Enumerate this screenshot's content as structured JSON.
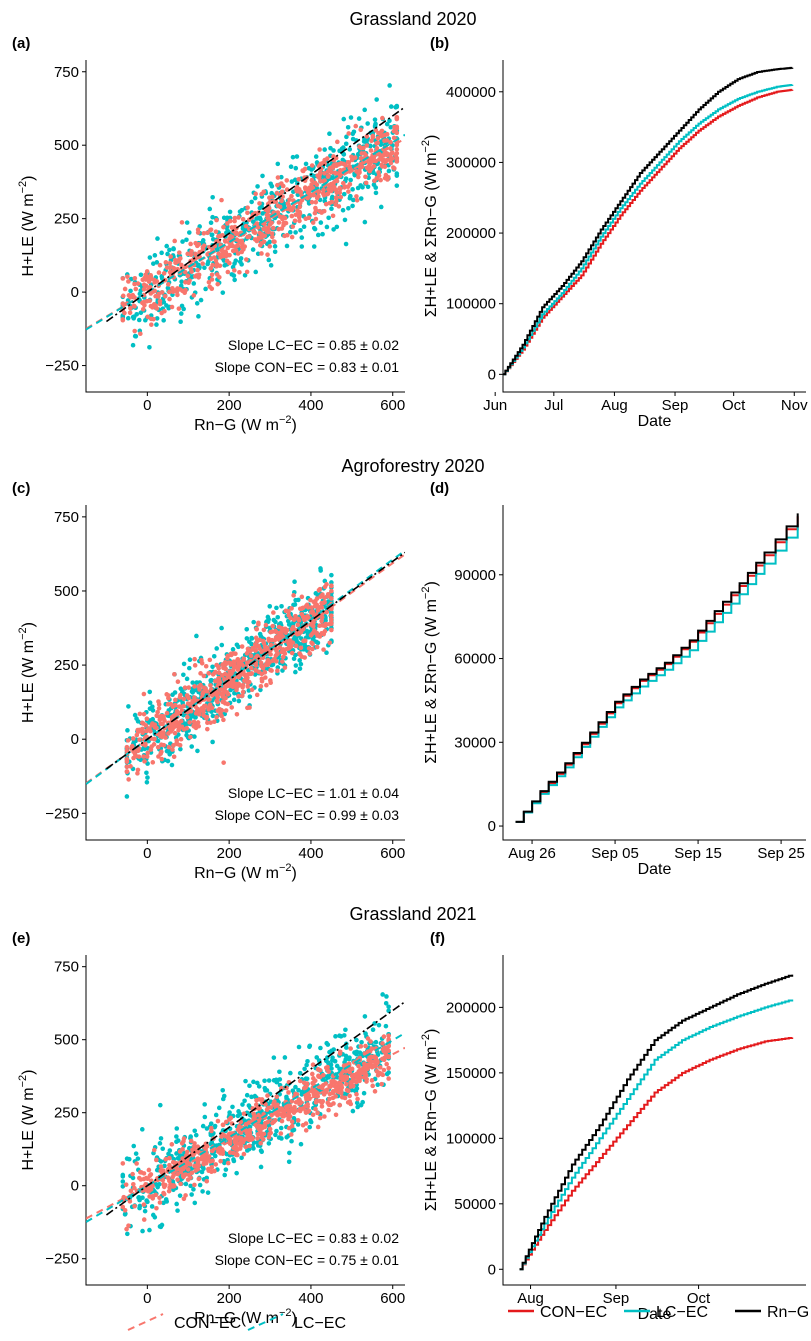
{
  "colors": {
    "con_ec": "#F8766D",
    "lc_ec": "#00BFC4",
    "rn_g": "#000000",
    "con_ec_line": "#E41A1C"
  },
  "rows": [
    {
      "title": "Grassland 2020"
    },
    {
      "title": "Agroforestry 2020"
    },
    {
      "title": "Grassland 2021"
    }
  ],
  "scatter_common": {
    "xlabel_main": "Rn−G (W m",
    "xlabel_sup": "−2",
    "xlabel_end": ")",
    "ylabel_main": "H+LE (W m",
    "ylabel_sup": "−2",
    "ylabel_end": ")"
  },
  "cum_common": {
    "xlabel": "Date",
    "ylabel_main": "ΣH+LE & ΣRn−G (W m",
    "ylabel_sup": "−2",
    "ylabel_end": ")"
  },
  "legends": {
    "scatter": [
      {
        "label": "CON−EC",
        "series": "CON-EC"
      },
      {
        "label": "LC−EC",
        "series": "LC-EC"
      }
    ],
    "cumulative": [
      {
        "label": "CON−EC",
        "series": "CON-EC"
      },
      {
        "label": "LC−EC",
        "series": "LC-EC"
      },
      {
        "label": "Rn−G",
        "series": "Rn-G"
      }
    ]
  },
  "chart_data": [
    {
      "panel": "(a)",
      "type": "scatter",
      "xlim": [
        -150,
        630
      ],
      "ylim": [
        -340,
        790
      ],
      "xticks": [
        0,
        200,
        400,
        600
      ],
      "yticks": [
        -250,
        0,
        250,
        500,
        750
      ],
      "xtick_labels": [
        "0",
        "200",
        "400",
        "600"
      ],
      "ytick_labels": [
        "−250",
        "0",
        "250",
        "500",
        "750"
      ],
      "cloud": {
        "x_range": [
          -60,
          610
        ],
        "spread_con": 50,
        "spread_lc": 75
      },
      "series": [
        {
          "name": "CON-EC",
          "slope": 0.83,
          "intercept": 0
        },
        {
          "name": "LC-EC",
          "slope": 0.85,
          "intercept": 0
        }
      ],
      "reference_line": {
        "slope": 1,
        "intercept": 0
      },
      "annotations": [
        "Slope LC−EC = 0.85 ± 0.02",
        "Slope CON−EC = 0.83 ± 0.01"
      ]
    },
    {
      "panel": "(b)",
      "type": "line",
      "xlim": [
        0,
        155
      ],
      "ylim": [
        -25000,
        445000
      ],
      "xticks": [
        -4,
        26,
        57,
        88,
        118,
        149
      ],
      "xtick_labels": [
        "Jun",
        "Jul",
        "Aug",
        "Sep",
        "Oct",
        "Nov"
      ],
      "yticks": [
        0,
        100000,
        200000,
        300000,
        400000
      ],
      "ytick_labels": [
        "0",
        "100000",
        "200000",
        "300000",
        "400000"
      ],
      "x": [
        0,
        10,
        20,
        30,
        40,
        50,
        60,
        70,
        80,
        90,
        100,
        110,
        120,
        130,
        140,
        148
      ],
      "series": [
        {
          "name": "CON-EC",
          "values": [
            0,
            35000,
            80000,
            110000,
            140000,
            185000,
            225000,
            260000,
            290000,
            320000,
            345000,
            365000,
            380000,
            392000,
            400000,
            403000
          ]
        },
        {
          "name": "LC-EC",
          "values": [
            0,
            38000,
            85000,
            115000,
            150000,
            195000,
            235000,
            270000,
            300000,
            330000,
            355000,
            375000,
            390000,
            400000,
            407000,
            410000
          ]
        },
        {
          "name": "Rn-G",
          "values": [
            0,
            42000,
            95000,
            125000,
            160000,
            205000,
            245000,
            285000,
            315000,
            345000,
            375000,
            400000,
            418000,
            428000,
            432000,
            434000
          ]
        }
      ]
    },
    {
      "panel": "(c)",
      "type": "scatter",
      "xlim": [
        -150,
        630
      ],
      "ylim": [
        -340,
        790
      ],
      "xticks": [
        0,
        200,
        400,
        600
      ],
      "yticks": [
        -250,
        0,
        250,
        500,
        750
      ],
      "xtick_labels": [
        "0",
        "200",
        "400",
        "600"
      ],
      "ytick_labels": [
        "−250",
        "0",
        "250",
        "500",
        "750"
      ],
      "cloud": {
        "x_range": [
          -50,
          450
        ],
        "spread_con": 55,
        "spread_lc": 60
      },
      "series": [
        {
          "name": "CON-EC",
          "slope": 0.99,
          "intercept": 0
        },
        {
          "name": "LC-EC",
          "slope": 1.01,
          "intercept": 0
        }
      ],
      "reference_line": {
        "slope": 1,
        "intercept": 0
      },
      "annotations": [
        "Slope LC−EC = 1.01 ± 0.04",
        "Slope CON−EC = 0.99 ± 0.03"
      ]
    },
    {
      "panel": "(d)",
      "type": "line",
      "xlim": [
        -1.5,
        35
      ],
      "ylim": [
        -5000,
        115000
      ],
      "xticks": [
        2,
        12,
        22,
        32
      ],
      "xtick_labels": [
        "Aug 26",
        "Sep 05",
        "Sep 15",
        "Sep 25"
      ],
      "yticks": [
        0,
        30000,
        60000,
        90000
      ],
      "ytick_labels": [
        "0",
        "30000",
        "60000",
        "90000"
      ],
      "x": [
        0,
        3,
        6,
        9,
        12,
        15,
        18,
        21,
        24,
        27,
        30,
        34
      ],
      "series": [
        {
          "name": "CON-EC",
          "values": [
            1500,
            12000,
            22000,
            33000,
            44000,
            52000,
            58000,
            66000,
            76000,
            86000,
            97000,
            111000
          ]
        },
        {
          "name": "LC-EC",
          "values": [
            1500,
            11500,
            21000,
            32000,
            42500,
            50000,
            56000,
            63000,
            73000,
            83000,
            94000,
            108000
          ]
        },
        {
          "name": "Rn-G",
          "values": [
            1500,
            12500,
            22500,
            33500,
            44500,
            52500,
            58500,
            66500,
            77000,
            87000,
            98000,
            112000
          ]
        }
      ]
    },
    {
      "panel": "(e)",
      "type": "scatter",
      "xlim": [
        -150,
        630
      ],
      "ylim": [
        -340,
        790
      ],
      "xticks": [
        0,
        200,
        400,
        600
      ],
      "yticks": [
        -250,
        0,
        250,
        500,
        750
      ],
      "xtick_labels": [
        "0",
        "200",
        "400",
        "600"
      ],
      "ytick_labels": [
        "−250",
        "0",
        "250",
        "500",
        "750"
      ],
      "cloud": {
        "x_range": [
          -60,
          590
        ],
        "spread_con": 40,
        "spread_lc": 70
      },
      "series": [
        {
          "name": "CON-EC",
          "slope": 0.75,
          "intercept": 0
        },
        {
          "name": "LC-EC",
          "slope": 0.83,
          "intercept": 0
        }
      ],
      "reference_line": {
        "slope": 1,
        "intercept": 0
      },
      "annotations": [
        "Slope LC−EC = 0.83 ± 0.02",
        "Slope CON−EC = 0.75 ± 0.01"
      ]
    },
    {
      "panel": "(f)",
      "type": "line",
      "xlim": [
        -10,
        100
      ],
      "ylim": [
        -12000,
        240000
      ],
      "xticks": [
        0,
        31,
        61
      ],
      "xtick_labels": [
        "Aug",
        "Sep",
        "Oct"
      ],
      "yticks": [
        0,
        50000,
        100000,
        150000,
        200000
      ],
      "ytick_labels": [
        "0",
        "50000",
        "100000",
        "150000",
        "200000"
      ],
      "x": [
        -4,
        5,
        15,
        25,
        35,
        45,
        55,
        65,
        75,
        85,
        95
      ],
      "series": [
        {
          "name": "CON-EC",
          "values": [
            0,
            30000,
            60000,
            85000,
            110000,
            135000,
            150000,
            160000,
            168000,
            174000,
            177000
          ]
        },
        {
          "name": "LC-EC",
          "values": [
            0,
            35000,
            70000,
            100000,
            130000,
            160000,
            175000,
            185000,
            193000,
            200000,
            206000
          ]
        },
        {
          "name": "Rn-G",
          "values": [
            0,
            40000,
            80000,
            110000,
            145000,
            175000,
            190000,
            200000,
            210000,
            218000,
            225000
          ]
        }
      ]
    }
  ]
}
